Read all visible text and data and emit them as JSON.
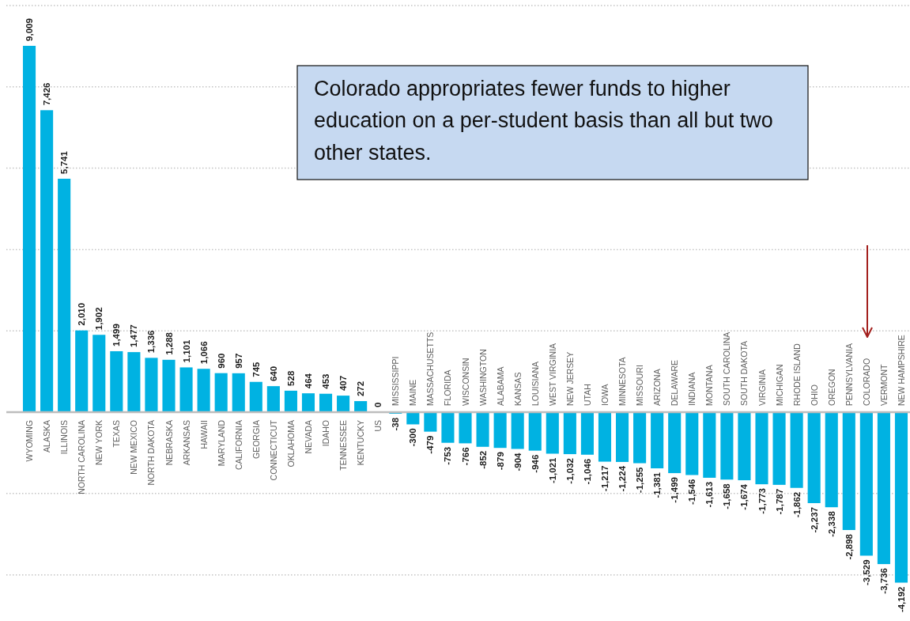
{
  "chart_data": {
    "type": "bar",
    "categories": [
      "WYOMING",
      "ALASKA",
      "ILLINOIS",
      "NORTH CAROLINA",
      "NEW YORK",
      "TEXAS",
      "NEW MEXICO",
      "NORTH DAKOTA",
      "NEBRASKA",
      "ARKANSAS",
      "HAWAII",
      "MARYLAND",
      "CALIFORNIA",
      "GEORGIA",
      "CONNECTICUT",
      "OKLAHOMA",
      "NEVADA",
      "IDAHO",
      "TENNESSEE",
      "KENTUCKY",
      "US",
      "MISSISSIPPI",
      "MAINE",
      "MASSACHUSETTS",
      "FLORIDA",
      "WISCONSIN",
      "WASHINGTON",
      "ALABAMA",
      "KANSAS",
      "LOUISIANA",
      "WEST VIRGINIA",
      "NEW JERSEY",
      "UTAH",
      "IOWA",
      "MINNESOTA",
      "MISSOURI",
      "ARIZONA",
      "DELAWARE",
      "INDIANA",
      "MONTANA",
      "SOUTH CAROLINA",
      "SOUTH DAKOTA",
      "VIRGINIA",
      "MICHIGAN",
      "RHODE ISLAND",
      "OHIO",
      "OREGON",
      "PENNSYLVANIA",
      "COLORADO",
      "VERMONT",
      "NEW HAMPSHIRE"
    ],
    "values": [
      9009,
      7426,
      5741,
      2010,
      1902,
      1499,
      1477,
      1336,
      1288,
      1101,
      1066,
      960,
      957,
      745,
      640,
      528,
      464,
      453,
      407,
      272,
      0,
      -38,
      -300,
      -479,
      -753,
      -766,
      -852,
      -879,
      -904,
      -946,
      -1021,
      -1032,
      -1046,
      -1217,
      -1224,
      -1255,
      -1381,
      -1499,
      -1546,
      -1613,
      -1658,
      -1674,
      -1773,
      -1787,
      -1862,
      -2237,
      -2338,
      -2898,
      -3529,
      -3736,
      -4192
    ],
    "value_labels": [
      "9,009",
      "7,426",
      "5,741",
      "2,010",
      "1,902",
      "1,499",
      "1,477",
      "1,336",
      "1,288",
      "1,101",
      "1,066",
      "960",
      "957",
      "745",
      "640",
      "528",
      "464",
      "453",
      "407",
      "272",
      "0",
      "-38",
      "-300",
      "-479",
      "-753",
      "-766",
      "-852",
      "-879",
      "-904",
      "-946",
      "-1,021",
      "-1,032",
      "-1,046",
      "-1,217",
      "-1,224",
      "-1,255",
      "-1,381",
      "-1,499",
      "-1,546",
      "-1,613",
      "-1,658",
      "-1,674",
      "-1,773",
      "-1,787",
      "-1,862",
      "-2,237",
      "-2,338",
      "-2,898",
      "-3,529",
      "-3,736",
      "-4,192"
    ],
    "color": "#00b2e2",
    "yticks": [
      {
        "value": -4000,
        "label": null
      },
      {
        "value": -2000,
        "label": null
      },
      {
        "value": 0,
        "label": null
      },
      {
        "value": 2000,
        "label": null
      },
      {
        "value": 4000,
        "label": null
      },
      {
        "value": 6000,
        "label": null
      },
      {
        "value": 8000,
        "label": null
      },
      {
        "value": 10000,
        "label": null
      }
    ],
    "grid": "y",
    "tick_labels": "x",
    "annotations": [
      "Colorado appropriates fewer funds to higher education on a per-student basis than all but two other states."
    ]
  }
}
